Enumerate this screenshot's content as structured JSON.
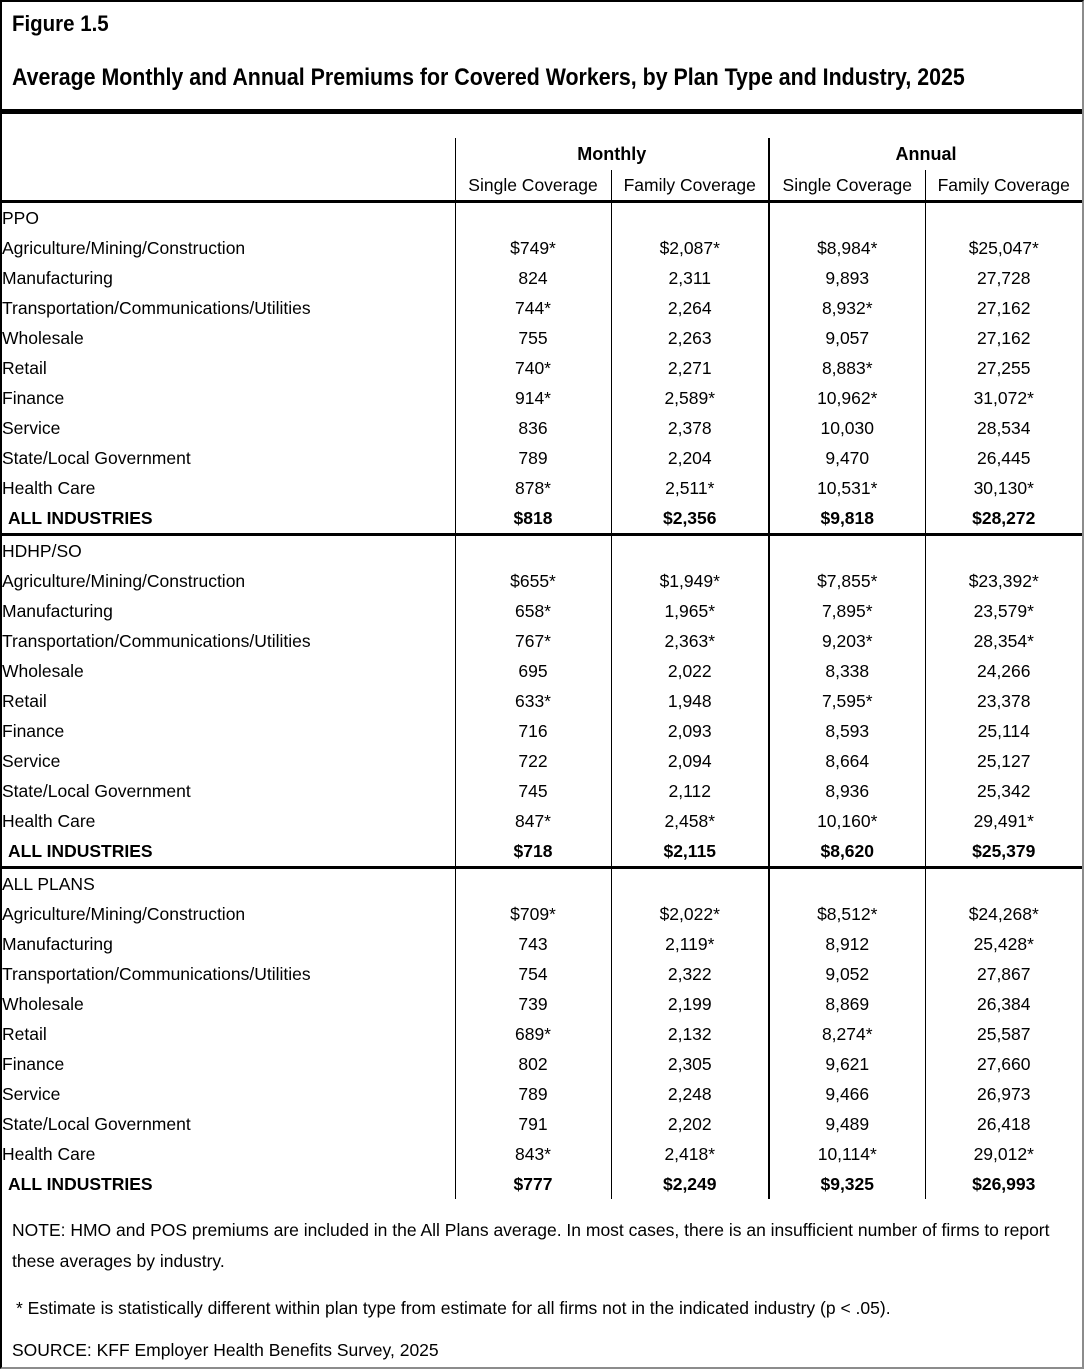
{
  "title": "Figure 1.5",
  "subtitle": "Average Monthly and Annual Premiums for Covered Workers, by Plan Type and Industry, 2025",
  "table": {
    "groups": [
      "Monthly",
      "Annual"
    ],
    "sub_headers": [
      "Single Coverage",
      "Family Coverage",
      "Single Coverage",
      "Family Coverage"
    ],
    "sections": [
      {
        "label": "PPO",
        "rows": [
          {
            "label": "Agriculture/Mining/Construction",
            "values": [
              "$749*",
              "$2,087*",
              "$8,984*",
              "$25,047*"
            ]
          },
          {
            "label": "Manufacturing",
            "values": [
              "824",
              "2,311",
              "9,893",
              "27,728"
            ]
          },
          {
            "label": "Transportation/Communications/Utilities",
            "values": [
              "744*",
              "2,264",
              "8,932*",
              "27,162"
            ]
          },
          {
            "label": "Wholesale",
            "values": [
              "755",
              "2,263",
              "9,057",
              "27,162"
            ]
          },
          {
            "label": "Retail",
            "values": [
              "740*",
              "2,271",
              "8,883*",
              "27,255"
            ]
          },
          {
            "label": "Finance",
            "values": [
              "914*",
              "2,589*",
              "10,962*",
              "31,072*"
            ]
          },
          {
            "label": "Service",
            "values": [
              "836",
              "2,378",
              "10,030",
              "28,534"
            ]
          },
          {
            "label": "State/Local Government",
            "values": [
              "789",
              "2,204",
              "9,470",
              "26,445"
            ]
          },
          {
            "label": "Health Care",
            "values": [
              "878*",
              "2,511*",
              "10,531*",
              "30,130*"
            ]
          }
        ],
        "total": {
          "label": "ALL INDUSTRIES",
          "values": [
            "$818",
            "$2,356",
            "$9,818",
            "$28,272"
          ]
        }
      },
      {
        "label": "HDHP/SO",
        "rows": [
          {
            "label": "Agriculture/Mining/Construction",
            "values": [
              "$655*",
              "$1,949*",
              "$7,855*",
              "$23,392*"
            ]
          },
          {
            "label": "Manufacturing",
            "values": [
              "658*",
              "1,965*",
              "7,895*",
              "23,579*"
            ]
          },
          {
            "label": "Transportation/Communications/Utilities",
            "values": [
              "767*",
              "2,363*",
              "9,203*",
              "28,354*"
            ]
          },
          {
            "label": "Wholesale",
            "values": [
              "695",
              "2,022",
              "8,338",
              "24,266"
            ]
          },
          {
            "label": "Retail",
            "values": [
              "633*",
              "1,948",
              "7,595*",
              "23,378"
            ]
          },
          {
            "label": "Finance",
            "values": [
              "716",
              "2,093",
              "8,593",
              "25,114"
            ]
          },
          {
            "label": "Service",
            "values": [
              "722",
              "2,094",
              "8,664",
              "25,127"
            ]
          },
          {
            "label": "State/Local Government",
            "values": [
              "745",
              "2,112",
              "8,936",
              "25,342"
            ]
          },
          {
            "label": "Health Care",
            "values": [
              "847*",
              "2,458*",
              "10,160*",
              "29,491*"
            ]
          }
        ],
        "total": {
          "label": "ALL INDUSTRIES",
          "values": [
            "$718",
            "$2,115",
            "$8,620",
            "$25,379"
          ]
        }
      },
      {
        "label": "ALL PLANS",
        "rows": [
          {
            "label": "Agriculture/Mining/Construction",
            "values": [
              "$709*",
              "$2,022*",
              "$8,512*",
              "$24,268*"
            ]
          },
          {
            "label": "Manufacturing",
            "values": [
              "743",
              "2,119*",
              "8,912",
              "25,428*"
            ]
          },
          {
            "label": "Transportation/Communications/Utilities",
            "values": [
              "754",
              "2,322",
              "9,052",
              "27,867"
            ]
          },
          {
            "label": "Wholesale",
            "values": [
              "739",
              "2,199",
              "8,869",
              "26,384"
            ]
          },
          {
            "label": "Retail",
            "values": [
              "689*",
              "2,132",
              "8,274*",
              "25,587"
            ]
          },
          {
            "label": "Finance",
            "values": [
              "802",
              "2,305",
              "9,621",
              "27,660"
            ]
          },
          {
            "label": "Service",
            "values": [
              "789",
              "2,248",
              "9,466",
              "26,973"
            ]
          },
          {
            "label": "State/Local Government",
            "values": [
              "791",
              "2,202",
              "9,489",
              "26,418"
            ]
          },
          {
            "label": "Health Care",
            "values": [
              "843*",
              "2,418*",
              "10,114*",
              "29,012*"
            ]
          }
        ],
        "total": {
          "label": "ALL INDUSTRIES",
          "values": [
            "$777",
            "$2,249",
            "$9,325",
            "$26,993"
          ]
        }
      }
    ]
  },
  "notes": {
    "note": "NOTE: HMO and POS premiums are included in the All Plans average. In most cases, there is an insufficient number of firms to report these averages by industry.",
    "footnote": "* Estimate is statistically different within plan type from estimate for all firms not in the indicated industry (p < .05).",
    "source": "SOURCE: KFF Employer Health Benefits Survey, 2025"
  }
}
